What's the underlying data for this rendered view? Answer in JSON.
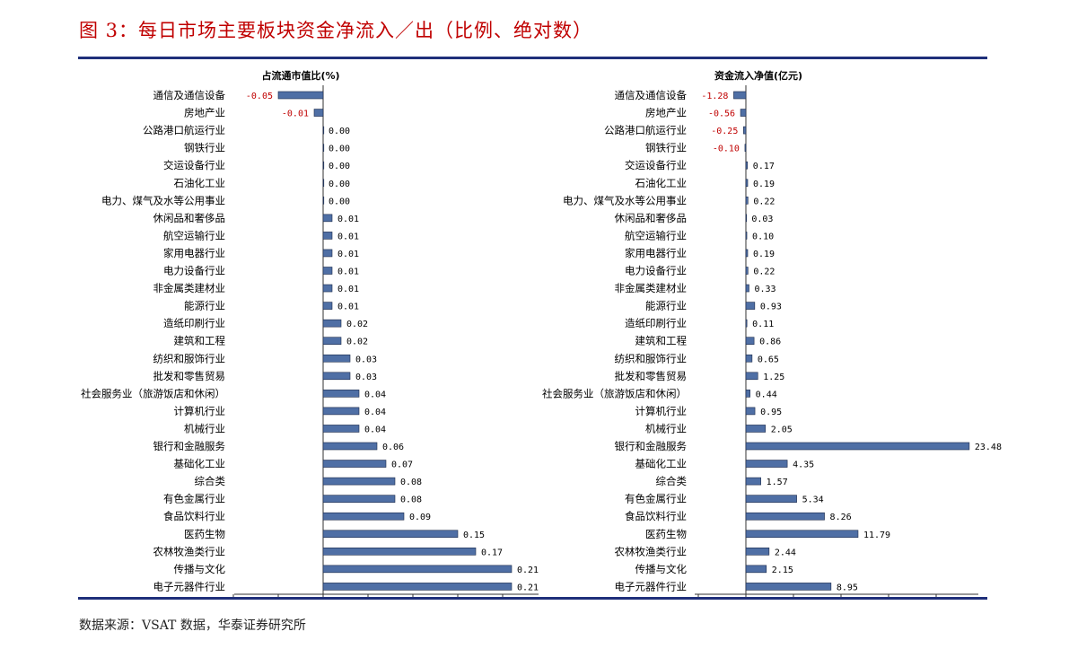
{
  "header": {
    "title": "图 3：每日市场主要板块资金净流入／出（比例、绝对数）"
  },
  "footer": {
    "source": "数据来源：VSAT 数据，华泰证券研究所"
  },
  "colors": {
    "title": "#c00000",
    "rule": "#1f2f7a",
    "bar_fill": "#4f6fa5",
    "negative_label": "#c00000"
  },
  "chart_data": [
    {
      "type": "bar",
      "orientation": "horizontal",
      "title": "占流通市值比(%)",
      "xlim": [
        -0.1,
        0.25
      ],
      "grid": false,
      "categories": [
        "通信及通信设备",
        "房地产业",
        "公路港口航运行业",
        "钢铁行业",
        "交运设备行业",
        "石油化工业",
        "电力、煤气及水等公用事业",
        "休闲品和奢侈品",
        "航空运输行业",
        "家用电器行业",
        "电力设备行业",
        "非金属类建材业",
        "能源行业",
        "造纸印刷行业",
        "建筑和工程",
        "纺织和服饰行业",
        "批发和零售贸易",
        "社会服务业（旅游饭店和休闲）",
        "计算机行业",
        "机械行业",
        "银行和金融服务",
        "基础化工业",
        "综合类",
        "有色金属行业",
        "食品饮料行业",
        "医药生物",
        "农林牧渔类行业",
        "传播与文化",
        "电子元器件行业"
      ],
      "values": [
        -0.05,
        -0.01,
        0.0,
        0.0,
        0.0,
        0.0,
        0.0,
        0.01,
        0.01,
        0.01,
        0.01,
        0.01,
        0.01,
        0.02,
        0.02,
        0.03,
        0.03,
        0.04,
        0.04,
        0.04,
        0.06,
        0.07,
        0.08,
        0.08,
        0.09,
        0.15,
        0.17,
        0.21,
        0.21
      ],
      "labels": [
        "-0.05",
        "-0.01",
        "0.00",
        "0.00",
        "0.00",
        "0.00",
        "0.00",
        "0.01",
        "0.01",
        "0.01",
        "0.01",
        "0.01",
        "0.01",
        "0.02",
        "0.02",
        "0.03",
        "0.03",
        "0.04",
        "0.04",
        "0.04",
        "0.06",
        "0.07",
        "0.08",
        "0.08",
        "0.09",
        "0.15",
        "0.17",
        "0.21",
        "0.21"
      ]
    },
    {
      "type": "bar",
      "orientation": "horizontal",
      "title": "资金流入净值(亿元)",
      "xlim": [
        -5,
        25
      ],
      "grid": false,
      "categories": [
        "通信及通信设备",
        "房地产业",
        "公路港口航运行业",
        "钢铁行业",
        "交运设备行业",
        "石油化工业",
        "电力、煤气及水等公用事业",
        "休闲品和奢侈品",
        "航空运输行业",
        "家用电器行业",
        "电力设备行业",
        "非金属类建材业",
        "能源行业",
        "造纸印刷行业",
        "建筑和工程",
        "纺织和服饰行业",
        "批发和零售贸易",
        "社会服务业（旅游饭店和休闲）",
        "计算机行业",
        "机械行业",
        "银行和金融服务",
        "基础化工业",
        "综合类",
        "有色金属行业",
        "食品饮料行业",
        "医药生物",
        "农林牧渔类行业",
        "传播与文化",
        "电子元器件行业"
      ],
      "values": [
        -1.28,
        -0.56,
        -0.25,
        -0.1,
        0.17,
        0.19,
        0.22,
        0.03,
        0.1,
        0.19,
        0.22,
        0.33,
        0.93,
        0.11,
        0.86,
        0.65,
        1.25,
        0.44,
        0.95,
        2.05,
        23.48,
        4.35,
        1.57,
        5.34,
        8.26,
        11.79,
        2.44,
        2.15,
        8.95
      ],
      "labels": [
        "-1.28",
        "-0.56",
        "-0.25",
        "-0.10",
        "0.17",
        "0.19",
        "0.22",
        "0.03",
        "0.10",
        "0.19",
        "0.22",
        "0.33",
        "0.93",
        "0.11",
        "0.86",
        "0.65",
        "1.25",
        "0.44",
        "0.95",
        "2.05",
        "23.48",
        "4.35",
        "1.57",
        "5.34",
        "8.26",
        "11.79",
        "2.44",
        "2.15",
        "8.95"
      ]
    }
  ]
}
